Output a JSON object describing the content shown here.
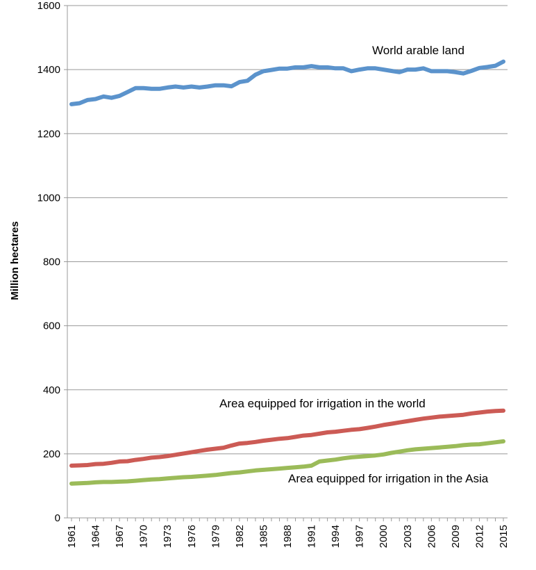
{
  "chart_data": {
    "type": "line",
    "title": "",
    "xlabel": "",
    "ylabel": "Million hectares",
    "ylim": [
      0,
      1600
    ],
    "yticks": [
      0,
      200,
      400,
      600,
      800,
      1000,
      1200,
      1400,
      1600
    ],
    "xticks": [
      "1961",
      "1964",
      "1967",
      "1970",
      "1973",
      "1976",
      "1979",
      "1982",
      "1985",
      "1988",
      "1991",
      "1994",
      "1997",
      "2000",
      "2003",
      "2006",
      "2009",
      "2012",
      "2015"
    ],
    "x": [
      1961,
      1962,
      1963,
      1964,
      1965,
      1966,
      1967,
      1968,
      1969,
      1970,
      1971,
      1972,
      1973,
      1974,
      1975,
      1976,
      1977,
      1978,
      1979,
      1980,
      1981,
      1982,
      1983,
      1984,
      1985,
      1986,
      1987,
      1988,
      1989,
      1990,
      1991,
      1992,
      1993,
      1994,
      1995,
      1996,
      1997,
      1998,
      1999,
      2000,
      2001,
      2002,
      2003,
      2004,
      2005,
      2006,
      2007,
      2008,
      2009,
      2010,
      2011,
      2012,
      2013,
      2014,
      2015
    ],
    "grid": true,
    "legend": "inline labels",
    "series": [
      {
        "name": "World arable land",
        "color": "#5b93cc",
        "values": [
          1292,
          1295,
          1305,
          1308,
          1316,
          1312,
          1318,
          1330,
          1342,
          1342,
          1340,
          1340,
          1344,
          1347,
          1344,
          1347,
          1344,
          1347,
          1351,
          1351,
          1348,
          1361,
          1365,
          1384,
          1395,
          1399,
          1403,
          1403,
          1407,
          1407,
          1411,
          1407,
          1407,
          1404,
          1404,
          1395,
          1400,
          1404,
          1404,
          1400,
          1396,
          1392,
          1400,
          1400,
          1404,
          1395,
          1395,
          1395,
          1392,
          1388,
          1396,
          1405,
          1408,
          1412,
          1425
        ]
      },
      {
        "name": "Area equipped for irrigation in the world",
        "color": "#cc5b55",
        "values": [
          163,
          164,
          165,
          168,
          169,
          172,
          176,
          177,
          181,
          184,
          188,
          190,
          193,
          197,
          201,
          205,
          209,
          213,
          216,
          219,
          226,
          232,
          234,
          237,
          241,
          244,
          247,
          249,
          253,
          257,
          259,
          263,
          267,
          269,
          272,
          275,
          277,
          281,
          285,
          290,
          294,
          298,
          302,
          306,
          310,
          313,
          316,
          318,
          320,
          322,
          326,
          329,
          332,
          334,
          335
        ]
      },
      {
        "name": "Area equipped for irrigation in the Asia",
        "color": "#9bbb59",
        "values": [
          107,
          108,
          109,
          111,
          112,
          112,
          113,
          114,
          116,
          118,
          120,
          121,
          123,
          125,
          127,
          128,
          130,
          132,
          134,
          137,
          140,
          142,
          145,
          148,
          150,
          152,
          154,
          156,
          158,
          160,
          163,
          176,
          179,
          182,
          186,
          189,
          191,
          193,
          195,
          198,
          203,
          207,
          211,
          214,
          216,
          218,
          220,
          222,
          224,
          227,
          229,
          230,
          233,
          236,
          239
        ]
      }
    ]
  }
}
